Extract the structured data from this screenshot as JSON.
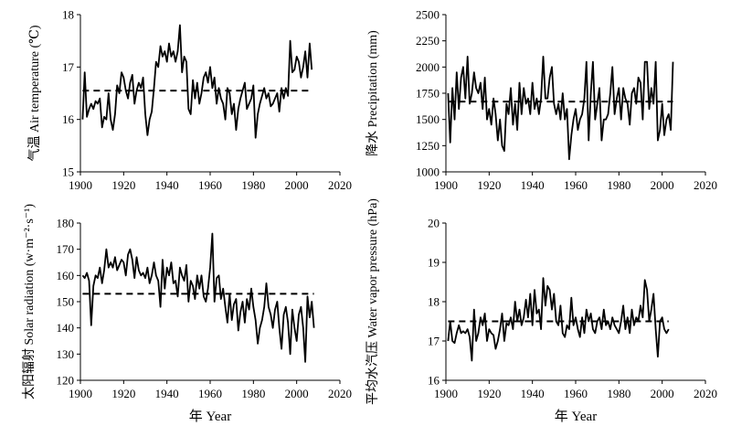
{
  "chart_data": [
    {
      "type": "line",
      "ylabel": "气温 Air temperature (℃)",
      "xlabel": "",
      "xlim": [
        1900,
        2020
      ],
      "ylim": [
        15,
        18
      ],
      "xticks": [
        "1900",
        "1920",
        "1940",
        "1960",
        "1980",
        "2000",
        "2020"
      ],
      "yticks": [
        "15",
        "16",
        "17",
        "18"
      ],
      "mean": 16.55,
      "x_start": 1901,
      "values": [
        16.0,
        16.9,
        16.05,
        16.2,
        16.3,
        16.2,
        16.35,
        16.3,
        16.4,
        15.85,
        16.05,
        16.0,
        16.5,
        16.0,
        15.8,
        16.1,
        16.65,
        16.5,
        16.9,
        16.8,
        16.55,
        16.4,
        16.7,
        16.85,
        16.3,
        16.55,
        16.7,
        16.6,
        16.8,
        16.1,
        15.7,
        16.0,
        16.15,
        16.6,
        17.1,
        17.0,
        17.4,
        17.2,
        17.3,
        17.1,
        17.45,
        17.2,
        17.3,
        17.1,
        17.3,
        17.8,
        16.9,
        17.2,
        17.1,
        16.2,
        16.1,
        16.75,
        16.4,
        16.7,
        16.3,
        16.5,
        16.8,
        16.9,
        16.7,
        17.0,
        16.6,
        16.8,
        16.3,
        16.6,
        16.4,
        16.3,
        16.0,
        16.6,
        16.5,
        16.1,
        16.3,
        15.8,
        16.2,
        16.4,
        16.55,
        16.7,
        16.2,
        16.3,
        16.4,
        16.65,
        15.65,
        16.1,
        16.3,
        16.45,
        16.6,
        16.4,
        16.5,
        16.25,
        16.3,
        16.4,
        16.5,
        16.15,
        16.6,
        16.4,
        16.6,
        16.45,
        17.5,
        16.9,
        16.95,
        17.2,
        17.1,
        16.8,
        17.0,
        17.3,
        16.8,
        17.45,
        16.95
      ]
    },
    {
      "type": "line",
      "ylabel": "降水 Precipitation (mm)",
      "xlabel": "",
      "xlim": [
        1900,
        2020
      ],
      "ylim": [
        1000,
        2500
      ],
      "xticks": [
        "1900",
        "1920",
        "1940",
        "1960",
        "1980",
        "2000",
        "2020"
      ],
      "yticks": [
        "1000",
        "1250",
        "1500",
        "1750",
        "2000",
        "2250",
        "2500"
      ],
      "mean": 1670,
      "x_start": 1901,
      "values": [
        1750,
        1280,
        1800,
        1500,
        1950,
        1600,
        1900,
        2000,
        1700,
        2100,
        1650,
        1750,
        1950,
        1800,
        1750,
        1850,
        1600,
        1900,
        1500,
        1600,
        1450,
        1700,
        1550,
        1300,
        1500,
        1250,
        1200,
        1650,
        1550,
        1800,
        1450,
        1650,
        1400,
        1850,
        1550,
        1800,
        1650,
        1700,
        1550,
        1850,
        1600,
        1700,
        1550,
        1700,
        2100,
        1700,
        1700,
        1900,
        2000,
        1650,
        1550,
        1650,
        1500,
        1750,
        1500,
        1600,
        1120,
        1350,
        1500,
        1600,
        1400,
        1500,
        1550,
        1700,
        2050,
        1300,
        1750,
        2050,
        1500,
        1650,
        1800,
        1300,
        1500,
        1500,
        1550,
        1750,
        2000,
        1550,
        1700,
        1800,
        1500,
        1800,
        1700,
        1650,
        1450,
        1750,
        1800,
        1650,
        1900,
        1850,
        1500,
        2050,
        2050,
        1600,
        1800,
        1650,
        2050,
        1300,
        1400,
        1650,
        1350,
        1500,
        1550,
        1400,
        2050
      ]
    },
    {
      "type": "line",
      "ylabel": "太阳辐射 Solar radiation (w·m⁻²·s⁻¹)",
      "xlabel": "年 Year",
      "xlim": [
        1900,
        2020
      ],
      "ylim": [
        120,
        180
      ],
      "xticks": [
        "1900",
        "1920",
        "1940",
        "1960",
        "1980",
        "2000",
        "2020"
      ],
      "yticks": [
        "120",
        "130",
        "140",
        "150",
        "160",
        "170",
        "180"
      ],
      "mean": 153,
      "x_start": 1901,
      "values": [
        160,
        159,
        161,
        158,
        141,
        156,
        160,
        159,
        163,
        157,
        162,
        170,
        163,
        165,
        163,
        167,
        162,
        164,
        166,
        165,
        160,
        168,
        170,
        166,
        159,
        167,
        162,
        160,
        161,
        159,
        163,
        157,
        160,
        165,
        160,
        158,
        148,
        166,
        155,
        163,
        160,
        165,
        157,
        158,
        152,
        163,
        160,
        158,
        164,
        150,
        158,
        156,
        151,
        160,
        155,
        160,
        152,
        150,
        155,
        163,
        176,
        150,
        159,
        160,
        151,
        155,
        148,
        142,
        153,
        143,
        149,
        151,
        139,
        146,
        150,
        142,
        151,
        147,
        155,
        148,
        143,
        134,
        140,
        143,
        148,
        157,
        148,
        145,
        140,
        147,
        150,
        140,
        132,
        145,
        148,
        142,
        130,
        147,
        140,
        135,
        145,
        148,
        140,
        127,
        152,
        144,
        150,
        140
      ]
    },
    {
      "type": "line",
      "ylabel": "平均水汽压 Water vapor pressure (hPa)",
      "xlabel": "年 Year",
      "xlim": [
        1900,
        2020
      ],
      "ylim": [
        16,
        20
      ],
      "xticks": [
        "1900",
        "1920",
        "1940",
        "1960",
        "1980",
        "2000",
        "2020"
      ],
      "yticks": [
        "16",
        "17",
        "18",
        "19",
        "20"
      ],
      "mean": 17.5,
      "x_start": 1901,
      "values": [
        17.0,
        17.5,
        17.0,
        16.95,
        17.2,
        17.4,
        17.2,
        17.25,
        17.2,
        17.3,
        17.1,
        16.5,
        17.8,
        17.0,
        17.2,
        17.6,
        17.4,
        17.7,
        17.0,
        17.3,
        17.2,
        17.15,
        16.8,
        17.0,
        17.3,
        17.7,
        17.0,
        17.45,
        17.4,
        17.6,
        17.3,
        18.0,
        17.5,
        17.8,
        17.4,
        17.6,
        18.05,
        17.6,
        18.2,
        17.4,
        18.3,
        17.7,
        17.8,
        17.3,
        18.6,
        17.9,
        18.4,
        18.3,
        17.8,
        18.2,
        17.5,
        17.4,
        17.9,
        17.2,
        17.1,
        17.4,
        17.3,
        18.1,
        17.4,
        17.6,
        17.3,
        17.1,
        17.6,
        17.2,
        17.8,
        17.5,
        17.7,
        17.3,
        17.2,
        17.5,
        17.6,
        17.3,
        17.8,
        17.4,
        17.5,
        17.3,
        17.6,
        17.4,
        17.3,
        17.2,
        17.5,
        17.9,
        17.3,
        17.6,
        17.2,
        17.8,
        17.4,
        17.6,
        17.5,
        17.9,
        17.6,
        18.55,
        18.3,
        17.5,
        17.8,
        18.2,
        17.3,
        16.6,
        17.5,
        17.6,
        17.3,
        17.2,
        17.3
      ]
    }
  ]
}
